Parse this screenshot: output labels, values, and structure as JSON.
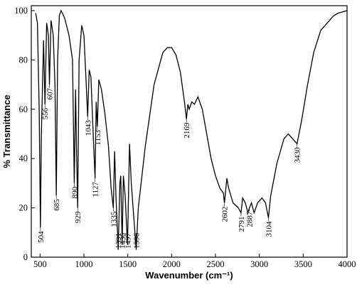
{
  "chart_data": {
    "type": "line",
    "xlabel": "Wavenumber (cm⁻¹)",
    "ylabel": "% Transmittance",
    "x": [
      450,
      470,
      490,
      504,
      515,
      540,
      556,
      575,
      595,
      607,
      625,
      650,
      670,
      685,
      700,
      720,
      740,
      780,
      830,
      870,
      890,
      905,
      915,
      929,
      945,
      975,
      1000,
      1020,
      1043,
      1060,
      1080,
      1100,
      1127,
      1140,
      1153,
      1170,
      1200,
      1240,
      1280,
      1310,
      1335,
      1350,
      1365,
      1391,
      1410,
      1420,
      1436,
      1450,
      1470,
      1497,
      1520,
      1540,
      1596,
      1620,
      1700,
      1800,
      1900,
      1950,
      2000,
      2050,
      2100,
      2150,
      2169,
      2185,
      2200,
      2230,
      2260,
      2300,
      2350,
      2400,
      2450,
      2500,
      2550,
      2590,
      2602,
      2630,
      2650,
      2700,
      2760,
      2791,
      2810,
      2840,
      2870,
      2887,
      2910,
      2940,
      2980,
      3030,
      3070,
      3104,
      3130,
      3200,
      3280,
      3330,
      3380,
      3430,
      3480,
      3550,
      3620,
      3700,
      3800,
      3850,
      3900,
      4000
    ],
    "values": [
      99,
      95,
      60,
      12,
      50,
      88,
      62,
      95,
      90,
      70,
      96,
      90,
      70,
      25,
      80,
      98,
      100,
      97,
      90,
      80,
      30,
      68,
      45,
      20,
      80,
      94,
      90,
      75,
      57,
      76,
      73,
      55,
      32,
      63,
      53,
      72,
      68,
      58,
      45,
      28,
      20,
      43,
      25,
      3,
      30,
      33,
      5,
      33,
      25,
      5,
      46,
      30,
      3,
      20,
      45,
      70,
      83,
      85,
      85,
      82,
      75,
      62,
      56,
      62,
      60,
      63,
      62,
      65,
      60,
      50,
      40,
      33,
      28,
      26,
      22,
      32,
      28,
      22,
      20,
      18,
      24,
      22,
      18,
      20,
      22,
      18,
      22,
      24,
      22,
      16,
      25,
      38,
      48,
      50,
      48,
      46,
      55,
      70,
      83,
      92,
      96,
      98,
      99,
      100
    ],
    "color": "#000000",
    "xlim": [
      400,
      4000
    ],
    "xticks": [
      500,
      1000,
      1500,
      2000,
      2500,
      3000,
      3500,
      4000
    ],
    "ylim": [
      0,
      102
    ],
    "yticks": [
      0,
      20,
      40,
      60,
      80,
      100
    ],
    "annotations": [
      {
        "text": "504",
        "x": 504
      },
      {
        "text": "556",
        "x": 556
      },
      {
        "text": "607",
        "x": 607
      },
      {
        "text": "685",
        "x": 685
      },
      {
        "text": "890",
        "x": 890
      },
      {
        "text": "929",
        "x": 929
      },
      {
        "text": "1043",
        "x": 1043
      },
      {
        "text": "1127",
        "x": 1127
      },
      {
        "text": "1153",
        "x": 1153
      },
      {
        "text": "1335",
        "x": 1335
      },
      {
        "text": "1391",
        "x": 1391
      },
      {
        "text": "1436",
        "x": 1436
      },
      {
        "text": "1497",
        "x": 1497
      },
      {
        "text": "1596",
        "x": 1596
      },
      {
        "text": "2169",
        "x": 2169
      },
      {
        "text": "2602",
        "x": 2602
      },
      {
        "text": "2791",
        "x": 2791
      },
      {
        "text": "2887",
        "x": 2887
      },
      {
        "text": "3104",
        "x": 3104
      },
      {
        "text": "3430",
        "x": 3430
      }
    ]
  }
}
